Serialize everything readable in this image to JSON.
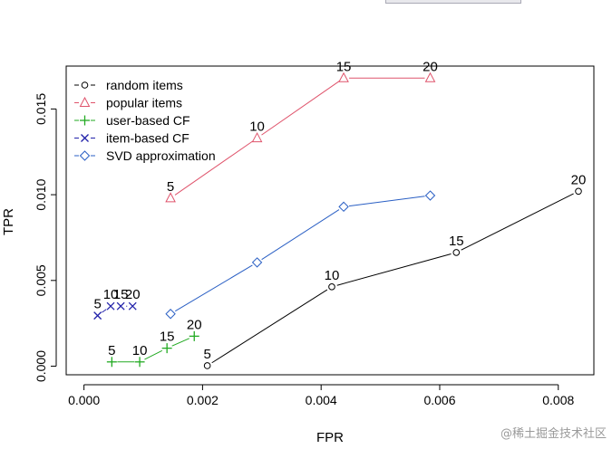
{
  "chart_data": {
    "type": "line",
    "xlabel": "FPR",
    "ylabel": "TPR",
    "xlim": [
      -0.0003,
      0.0086
    ],
    "ylim": [
      -0.0005,
      0.0175
    ],
    "xticks": [
      0,
      0.002,
      0.004,
      0.006,
      0.008
    ],
    "xtick_labels": [
      "0.000",
      "0.002",
      "0.004",
      "0.006",
      "0.008"
    ],
    "yticks": [
      0,
      0.005,
      0.01,
      0.015
    ],
    "ytick_labels": [
      "0.000",
      "0.005",
      "0.010",
      "0.015"
    ],
    "legend_position": "top-left",
    "series": [
      {
        "name": "random items",
        "color": "#000000",
        "marker": "circle",
        "x": [
          0.00208,
          0.00418,
          0.00628,
          0.00834
        ],
        "y": [
          3e-05,
          0.00463,
          0.00663,
          0.0102
        ],
        "labels": [
          "5",
          "10",
          "15",
          "20"
        ]
      },
      {
        "name": "popular items",
        "color": "#df536b",
        "marker": "triangle",
        "x": [
          0.00146,
          0.00292,
          0.00438,
          0.00584
        ],
        "y": [
          0.0098,
          0.0133,
          0.0168,
          0.0168
        ],
        "labels": [
          "5",
          "10",
          "15",
          "20"
        ]
      },
      {
        "name": "user-based CF",
        "color": "#22aa22",
        "marker": "plus",
        "x": [
          0.00047,
          0.00094,
          0.0014,
          0.00186
        ],
        "y": [
          0.00025,
          0.00025,
          0.00105,
          0.00175
        ],
        "labels": [
          "5",
          "10",
          "15",
          "20"
        ]
      },
      {
        "name": "item-based CF",
        "color": "#2222aa",
        "marker": "cross",
        "x": [
          0.00023,
          0.00045,
          0.00062,
          0.00082
        ],
        "y": [
          0.00295,
          0.0035,
          0.0035,
          0.0035
        ],
        "labels": [
          "5",
          "10",
          "15",
          "20"
        ]
      },
      {
        "name": "SVD approximation",
        "color": "#2a5fc4",
        "marker": "diamond",
        "x": [
          0.00146,
          0.00292,
          0.00438,
          0.00584
        ],
        "y": [
          0.00305,
          0.00605,
          0.0093,
          0.00995
        ],
        "labels": [
          null,
          null,
          null,
          null
        ]
      }
    ]
  },
  "watermark": "@稀土掘金技术社区"
}
